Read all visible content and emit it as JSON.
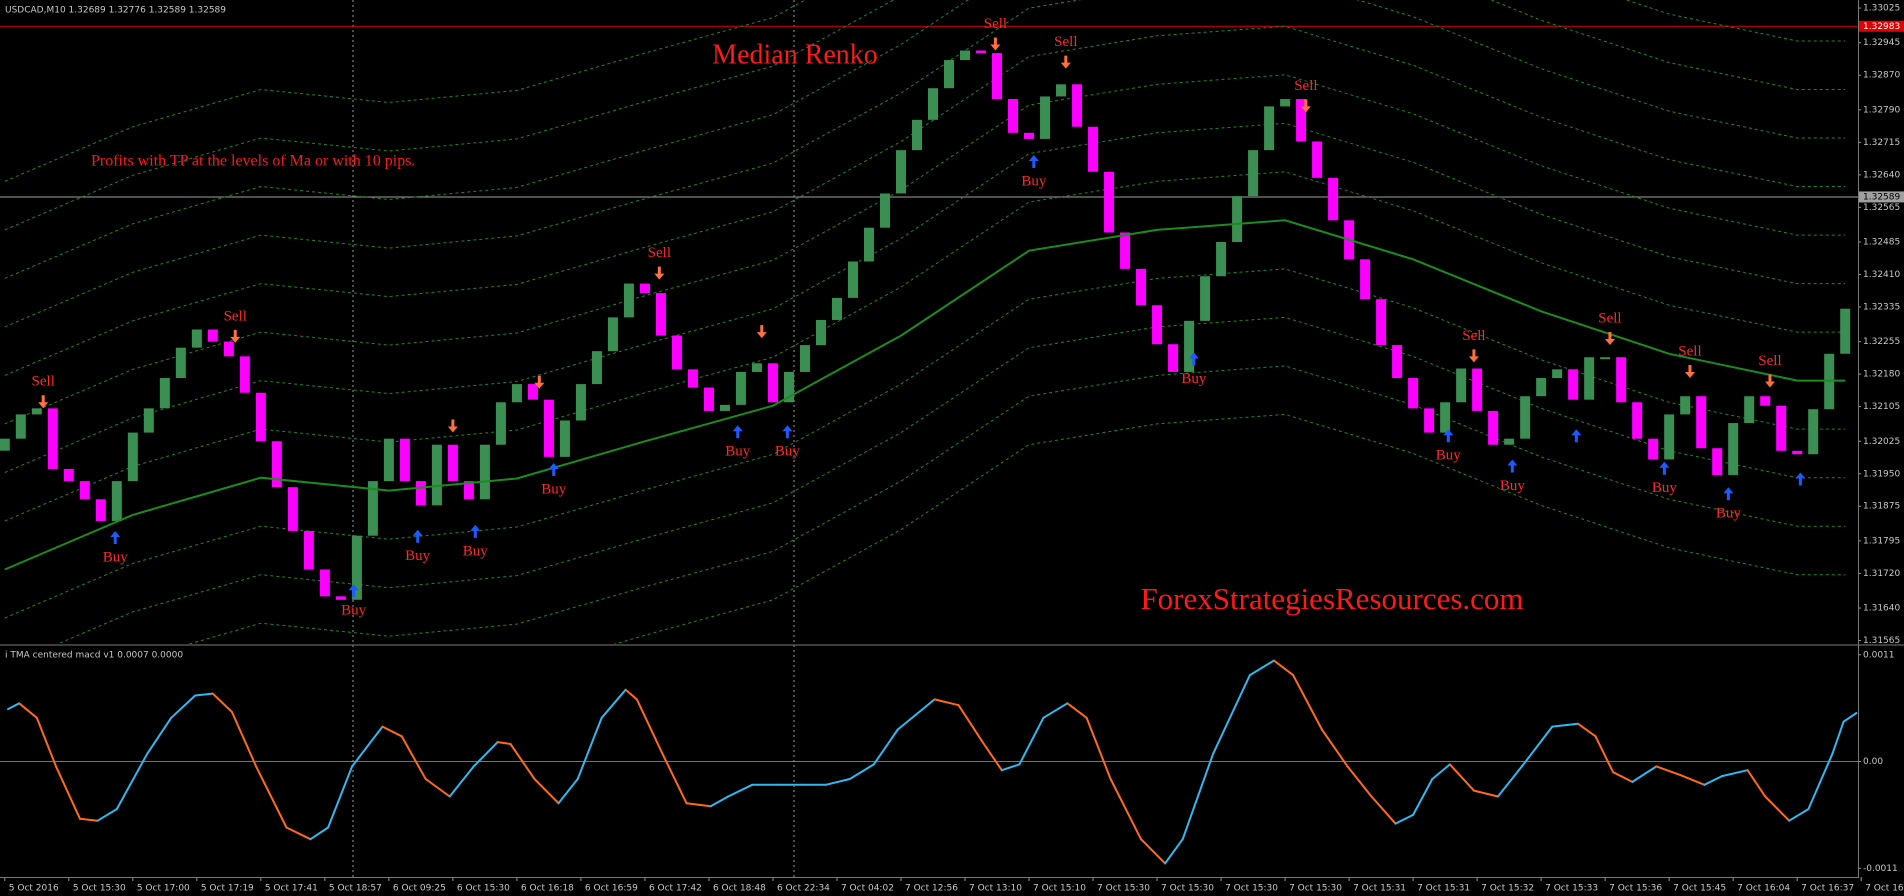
{
  "chart_data": {
    "type": "renko",
    "symbol_info": "USDCAD,M10  1.32689 1.32776 1.32589 1.32589",
    "title": "Median Renko",
    "subtitle": "Profits with TP at the levels of Ma or with 10 pips.",
    "watermark": "ForexStrategiesResources.com",
    "xlim": [
      -0.3,
      115.8
    ],
    "xticks": [
      {
        "value": 0,
        "label": "5 Oct 2016"
      },
      {
        "value": 4,
        "label": "5 Oct 15:30"
      },
      {
        "value": 8,
        "label": "5 Oct 17:00"
      },
      {
        "value": 12,
        "label": "5 Oct 17:19"
      },
      {
        "value": 16,
        "label": "5 Oct 17:41"
      },
      {
        "value": 20,
        "label": "5 Oct 18:57"
      },
      {
        "value": 24,
        "label": "6 Oct 09:25"
      },
      {
        "value": 28,
        "label": "6 Oct 15:30"
      },
      {
        "value": 32,
        "label": "6 Oct 16:18"
      },
      {
        "value": 36,
        "label": "6 Oct 16:59"
      },
      {
        "value": 40,
        "label": "6 Oct 17:42"
      },
      {
        "value": 44,
        "label": "6 Oct 18:48"
      },
      {
        "value": 48,
        "label": "6 Oct 22:34"
      },
      {
        "value": 52,
        "label": "7 Oct 04:02"
      },
      {
        "value": 56,
        "label": "7 Oct 12:56"
      },
      {
        "value": 60,
        "label": "7 Oct 13:10"
      },
      {
        "value": 64,
        "label": "7 Oct 15:10"
      },
      {
        "value": 68,
        "label": "7 Oct 15:30"
      },
      {
        "value": 72,
        "label": "7 Oct 15:30"
      },
      {
        "value": 76,
        "label": "7 Oct 15:30"
      },
      {
        "value": 80,
        "label": "7 Oct 15:30"
      },
      {
        "value": 84,
        "label": "7 Oct 15:31"
      },
      {
        "value": 88,
        "label": "7 Oct 15:31"
      },
      {
        "value": 92,
        "label": "7 Oct 15:32"
      },
      {
        "value": 96,
        "label": "7 Oct 15:33"
      },
      {
        "value": 100,
        "label": "7 Oct 15:36"
      },
      {
        "value": 104,
        "label": "7 Oct 15:45"
      },
      {
        "value": 108,
        "label": "7 Oct 16:04"
      },
      {
        "value": 112,
        "label": "7 Oct 16:37"
      },
      {
        "value": 116,
        "label": "7 Oct 16:58"
      }
    ],
    "ylim": [
      1.31557,
      1.33039
    ],
    "yticks": [
      1.33025,
      1.32945,
      {
        "value": 1.3287,
        "label": "1.32870"
      },
      {
        "value": 1.3279,
        "label": "1.32790"
      },
      1.32715,
      {
        "value": 1.3264,
        "label": "1.32640"
      },
      1.32565,
      1.32485,
      {
        "value": 1.3241,
        "label": "1.32410"
      },
      1.32335,
      1.32255,
      {
        "value": 1.3218,
        "label": "1.32180"
      },
      1.32105,
      1.32025,
      {
        "value": 1.3195,
        "label": "1.31950"
      },
      1.31875,
      1.31795,
      {
        "value": 1.3172,
        "label": "1.31720"
      },
      {
        "value": 1.3164,
        "label": "1.31640"
      },
      1.31565
    ],
    "bricks": {
      "up_color": "#3b8f52",
      "down_color": "#ff00ff",
      "close": [
        1.32031,
        1.32087,
        1.32101,
        1.31961,
        1.31933,
        1.31891,
        1.31841,
        1.31933,
        1.32045,
        1.32101,
        1.32171,
        1.32241,
        1.32283,
        1.32255,
        1.32221,
        1.32137,
        1.32025,
        1.31919,
        1.31818,
        1.31729,
        1.31667,
        1.31659,
        1.31807,
        1.31933,
        1.32031,
        1.31933,
        1.31877,
        1.32017,
        1.31933,
        1.31891,
        1.32017,
        1.32115,
        1.32157,
        1.32121,
        1.31989,
        1.32073,
        1.32157,
        1.32233,
        1.32311,
        1.32389,
        1.32367,
        1.32269,
        1.32191,
        1.32149,
        1.32095,
        1.32109,
        1.32185,
        1.32205,
        1.32115,
        1.32185,
        1.32247,
        1.32305,
        1.32356,
        1.3244,
        1.32518,
        1.32597,
        1.32697,
        1.32767,
        1.3284,
        1.32905,
        1.32927,
        1.32921,
        1.32815,
        1.32737,
        1.32723,
        1.32821,
        1.32849,
        1.32751,
        1.32647,
        1.32507,
        1.32423,
        1.32339,
        1.32249,
        1.32185,
        1.32303,
        1.32406,
        1.32485,
        1.32591,
        1.32697,
        1.32798,
        1.32815,
        1.32717,
        1.32633,
        1.32535,
        1.32445,
        1.32353,
        1.32247,
        1.32171,
        1.32101,
        1.32045,
        1.32115,
        1.32193,
        1.32095,
        1.32017,
        1.32031,
        1.32129,
        1.32171,
        1.32191,
        1.32121,
        1.32219,
        1.32219,
        1.32115,
        1.32031,
        1.31983,
        1.32087,
        1.32129,
        1.32009,
        1.31947,
        1.32067,
        1.32129,
        1.32107,
        1.32003,
        1.31995,
        1.32099,
        1.32227,
        1.32331
      ]
    },
    "ma": {
      "color": "#1c8c1c",
      "x": [
        0,
        8,
        16,
        24,
        32,
        40,
        48,
        56,
        64,
        72,
        80,
        88,
        96,
        104,
        112,
        115
      ],
      "values": [
        1.31729,
        1.31855,
        1.31941,
        1.31911,
        1.31939,
        1.32025,
        1.32107,
        1.32269,
        1.32465,
        1.32513,
        1.32535,
        1.32445,
        1.32325,
        1.32227,
        1.32165,
        1.32165
      ]
    },
    "bands": {
      "color": "#1f8a1f",
      "offsets": [
        -0.00448,
        -0.00336,
        -0.00224,
        -0.00112,
        0.00112,
        0.00224,
        0.00336,
        0.00448,
        0.0056,
        0.00672,
        0.00784,
        0.00896
      ]
    },
    "signals": [
      {
        "side": "sell",
        "label": "Sell",
        "x": 2.4,
        "y": 1.32115
      },
      {
        "side": "sell",
        "label": "Sell",
        "x": 14.4,
        "y": 1.32266
      },
      {
        "side": "sell",
        "x": 28,
        "y": 1.32059
      },
      {
        "side": "sell",
        "x": 33.4,
        "y": 1.3216
      },
      {
        "side": "sell",
        "label": "Sell",
        "x": 40.9,
        "y": 1.32412
      },
      {
        "side": "sell",
        "x": 47.3,
        "y": 1.32277
      },
      {
        "side": "sell",
        "label": "Sell",
        "x": 61.9,
        "y": 1.32941
      },
      {
        "side": "sell",
        "label": "Sell",
        "x": 66.3,
        "y": 1.32899
      },
      {
        "side": "sell",
        "label": "Sell",
        "x": 81.3,
        "y": 1.32798
      },
      {
        "side": "sell",
        "label": "Sell",
        "x": 91.8,
        "y": 1.32221
      },
      {
        "side": "sell",
        "label": "Sell",
        "x": 100.3,
        "y": 1.32261
      },
      {
        "side": "sell",
        "label": "Sell",
        "x": 105.3,
        "y": 1.32185
      },
      {
        "side": "sell",
        "label": "Sell",
        "x": 110.3,
        "y": 1.32163
      },
      {
        "side": "buy",
        "label": "Buy",
        "x": 6.9,
        "y": 1.31804
      },
      {
        "side": "buy",
        "label": "Buy",
        "x": 21.8,
        "y": 1.31681
      },
      {
        "side": "buy",
        "label": "Buy",
        "x": 25.8,
        "y": 1.31807
      },
      {
        "side": "buy",
        "label": "Buy",
        "x": 29.4,
        "y": 1.31818
      },
      {
        "side": "buy",
        "label": "Buy",
        "x": 34.3,
        "y": 1.31961
      },
      {
        "side": "buy",
        "label": "Buy",
        "x": 45.8,
        "y": 1.32048
      },
      {
        "side": "buy",
        "label": "Buy",
        "x": 48.9,
        "y": 1.32048
      },
      {
        "side": "buy",
        "label": "Buy",
        "x": 64.3,
        "y": 1.32672
      },
      {
        "side": "buy",
        "label": "Buy",
        "x": 74.3,
        "y": 1.32216
      },
      {
        "side": "buy",
        "label": "Buy",
        "x": 90.2,
        "y": 1.32039
      },
      {
        "side": "buy",
        "label": "Buy",
        "x": 94.2,
        "y": 1.31969
      },
      {
        "side": "buy",
        "x": 98.2,
        "y": 1.32039
      },
      {
        "side": "buy",
        "label": "Buy",
        "x": 103.7,
        "y": 1.31964
      },
      {
        "side": "buy",
        "label": "Buy",
        "x": 107.7,
        "y": 1.31905
      },
      {
        "side": "buy",
        "x": 112.2,
        "y": 1.31939
      }
    ],
    "levels": [
      {
        "value": 1.32983,
        "color": "#e00000"
      },
      {
        "value": 1.32589,
        "color": "#a0a0a0"
      }
    ],
    "indicator": {
      "type": "line",
      "title": "i TMA centered macd v1 0.0007 0.0000",
      "ylim": [
        -0.00119,
        0.00118
      ],
      "yticks": [
        0.0011,
        {
          "value": 0,
          "label": "0.00"
        },
        -0.0011
      ],
      "rising_color": "#2fb9f0",
      "falling_color": "#ff6a1a",
      "x": [
        0.2,
        0.9,
        2.0,
        3.2,
        4.7,
        5.8,
        7.0,
        8.9,
        10.4,
        11.9,
        13.0,
        14.2,
        15.7,
        17.6,
        19.1,
        20.2,
        21.7,
        23.6,
        24.8,
        26.3,
        27.8,
        29.3,
        30.8,
        31.6,
        33.1,
        34.6,
        35.8,
        37.3,
        38.8,
        39.5,
        41.1,
        42.6,
        44.1,
        45.2,
        46.7,
        48.3,
        49.8,
        51.3,
        52.8,
        54.3,
        55.8,
        58.1,
        59.6,
        61.1,
        62.3,
        63.4,
        64.9,
        66.4,
        67.6,
        69.1,
        71.0,
        72.5,
        73.6,
        75.5,
        77.8,
        79.3,
        80.5,
        82.3,
        83.9,
        85.4,
        86.9,
        88.0,
        89.2,
        90.3,
        91.8,
        93.3,
        94.8,
        96.7,
        98.3,
        99.4,
        100.5,
        101.7,
        103.2,
        104.7,
        106.2,
        107.3,
        108.9,
        110.0,
        111.5,
        112.7,
        114.2,
        114.9,
        115.7
      ],
      "values": [
        0.00054,
        0.0006,
        0.00045,
        -5e-05,
        -0.00059,
        -0.00061,
        -0.00049,
        8e-05,
        0.00045,
        0.00068,
        0.0007,
        0.00051,
        -5e-05,
        -0.00068,
        -0.0008,
        -0.00068,
        -5e-05,
        0.00036,
        0.00026,
        -0.00018,
        -0.00036,
        -5e-05,
        0.0002,
        0.00018,
        -0.00018,
        -0.00043,
        -0.00018,
        0.00045,
        0.00074,
        0.00064,
        8e-05,
        -0.00043,
        -0.00046,
        -0.00036,
        -0.00024,
        -0.00024,
        -0.00024,
        -0.00024,
        -0.00018,
        -3e-05,
        0.00033,
        0.00064,
        0.00058,
        0.0002,
        -9e-05,
        -3e-05,
        0.00045,
        0.0006,
        0.00045,
        -0.00018,
        -0.0008,
        -0.00105,
        -0.0008,
        8e-05,
        0.00089,
        0.00104,
        0.00089,
        0.00033,
        -5e-05,
        -0.00036,
        -0.00064,
        -0.00055,
        -0.00018,
        -3e-05,
        -0.0003,
        -0.00036,
        -5e-05,
        0.00036,
        0.00039,
        0.00026,
        -0.00011,
        -0.00021,
        -5e-05,
        -0.00014,
        -0.00024,
        -0.00015,
        -9e-05,
        -0.00036,
        -0.00061,
        -0.00049,
        8e-05,
        0.00041,
        0.0005
      ]
    }
  }
}
